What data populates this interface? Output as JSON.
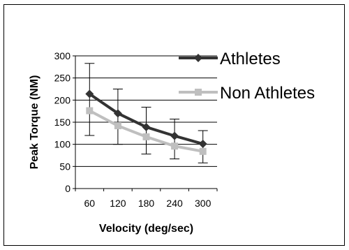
{
  "chart_data": {
    "type": "line",
    "title": "",
    "xlabel": "Velocity (deg/sec)",
    "ylabel": "Peak Torque (NM)",
    "x": [
      60,
      120,
      180,
      240,
      300
    ],
    "ylim": [
      0,
      300
    ],
    "yticks": [
      0,
      50,
      100,
      150,
      200,
      250,
      300
    ],
    "grid": "horizontal",
    "legend_position": "right",
    "series": [
      {
        "name": "Athletes",
        "color": "#333333",
        "marker": "diamond",
        "values": [
          214,
          170,
          139,
          119,
          101
        ],
        "error_low": [
          120,
          100,
          78,
          67,
          58
        ],
        "error_high": [
          283,
          225,
          184,
          157,
          131
        ]
      },
      {
        "name": "Non Athletes",
        "color": "#bfbfbf",
        "marker": "square",
        "values": [
          176,
          142,
          117,
          96,
          84
        ]
      }
    ]
  }
}
